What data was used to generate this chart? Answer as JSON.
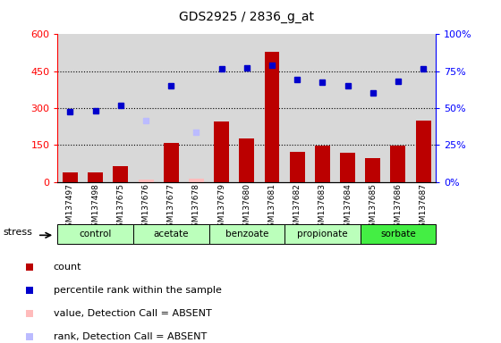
{
  "title": "GDS2925 / 2836_g_at",
  "samples": [
    "GSM137497",
    "GSM137498",
    "GSM137675",
    "GSM137676",
    "GSM137677",
    "GSM137678",
    "GSM137679",
    "GSM137680",
    "GSM137681",
    "GSM137682",
    "GSM137683",
    "GSM137684",
    "GSM137685",
    "GSM137686",
    "GSM137687"
  ],
  "count_values": [
    40,
    38,
    65,
    10,
    158,
    12,
    245,
    175,
    530,
    120,
    148,
    118,
    95,
    148,
    250
  ],
  "count_absent": [
    false,
    false,
    false,
    true,
    false,
    true,
    false,
    false,
    false,
    false,
    false,
    false,
    false,
    false,
    false
  ],
  "rank_values": [
    285,
    290,
    310,
    250,
    390,
    200,
    460,
    465,
    475,
    415,
    405,
    390,
    360,
    410,
    460
  ],
  "rank_absent": [
    false,
    false,
    false,
    true,
    false,
    true,
    false,
    false,
    false,
    false,
    false,
    false,
    false,
    false,
    false
  ],
  "groups": [
    {
      "name": "control",
      "start": 0,
      "end": 2,
      "color": "#ccffcc"
    },
    {
      "name": "acetate",
      "start": 3,
      "end": 5,
      "color": "#ccffcc"
    },
    {
      "name": "benzoate",
      "start": 6,
      "end": 8,
      "color": "#ccffcc"
    },
    {
      "name": "propionate",
      "start": 9,
      "end": 11,
      "color": "#ccffcc"
    },
    {
      "name": "sorbate",
      "start": 12,
      "end": 14,
      "color": "#66ee66"
    }
  ],
  "ylim_left": [
    0,
    600
  ],
  "ylim_right": [
    0,
    100
  ],
  "left_ticks": [
    0,
    150,
    300,
    450,
    600
  ],
  "right_ticks": [
    0,
    25,
    50,
    75,
    100
  ],
  "left_tick_labels": [
    "0",
    "150",
    "300",
    "450",
    "600"
  ],
  "right_tick_labels": [
    "0%",
    "25%",
    "50%",
    "75%",
    "100%"
  ],
  "grid_lines": [
    150,
    300,
    450
  ],
  "bar_color": "#bb0000",
  "bar_absent_color": "#ffbbbb",
  "rank_color": "#0000cc",
  "rank_absent_color": "#bbbbff",
  "bg_color": "#d8d8d8",
  "legend_items": [
    {
      "color": "#bb0000",
      "label": "count"
    },
    {
      "color": "#0000cc",
      "label": "percentile rank within the sample"
    },
    {
      "color": "#ffbbbb",
      "label": "value, Detection Call = ABSENT"
    },
    {
      "color": "#bbbbff",
      "label": "rank, Detection Call = ABSENT"
    }
  ]
}
